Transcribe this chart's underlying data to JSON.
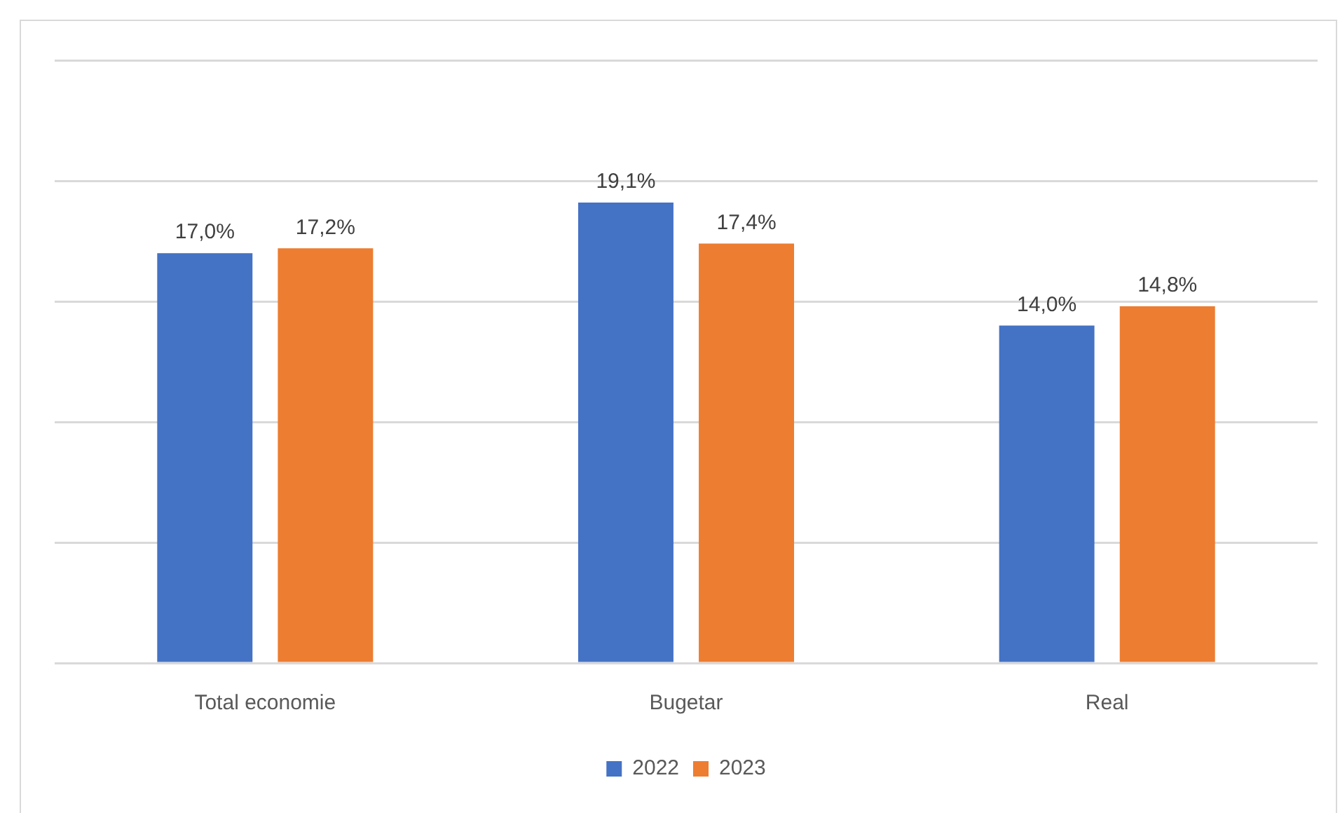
{
  "chart_data": {
    "type": "bar",
    "categories": [
      "Total economie",
      "Bugetar",
      "Real"
    ],
    "series": [
      {
        "name": "2022",
        "color": "#4472c4",
        "values": [
          17.0,
          19.1,
          14.0
        ],
        "value_labels": [
          "17,0%",
          "19,1%",
          "14,0%"
        ]
      },
      {
        "name": "2023",
        "color": "#ed7d31",
        "values": [
          17.2,
          17.4,
          14.8
        ],
        "value_labels": [
          "17,2%",
          "17,4%",
          "14,8%"
        ]
      }
    ],
    "ylim": [
      0,
      25
    ],
    "yticks": [
      {
        "value": 0,
        "label": null
      },
      {
        "value": 5,
        "label": null
      },
      {
        "value": 10,
        "label": null
      },
      {
        "value": 15,
        "label": null
      },
      {
        "value": 20,
        "label": null
      },
      {
        "value": 25,
        "label": null
      }
    ],
    "grid": "y",
    "legend": "bottom",
    "tick_labels": "x"
  }
}
